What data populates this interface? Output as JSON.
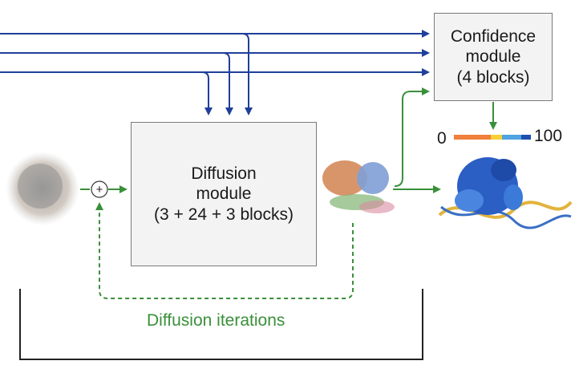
{
  "confidence_module": {
    "line1": "Confidence",
    "line2": "module",
    "line3": "(4 blocks)"
  },
  "diffusion_module": {
    "line1": "Diffusion",
    "line2": "module",
    "line3": "(3 + 24 + 3 blocks)"
  },
  "plus_symbol": "+",
  "confidence_scale": {
    "min": "0",
    "max": "100",
    "colors": [
      "#f07f3c",
      "#f7d038",
      "#4fa3e0",
      "#1f4fb0"
    ]
  },
  "loop_label": "Diffusion iterations",
  "colors": {
    "input_arrows": "#1f3f9a",
    "flow_arrows": "#3a8f3a",
    "box_fill": "#f3f3f3",
    "box_border": "#7a7a7a"
  }
}
